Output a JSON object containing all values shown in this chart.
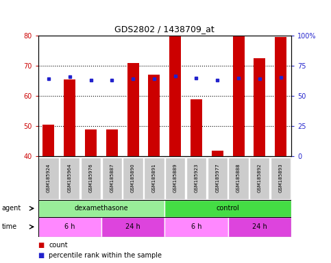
{
  "title": "GDS2802 / 1438709_at",
  "samples": [
    "GSM185924",
    "GSM185964",
    "GSM185976",
    "GSM185887",
    "GSM185890",
    "GSM185891",
    "GSM185889",
    "GSM185923",
    "GSM185977",
    "GSM185888",
    "GSM185892",
    "GSM185893"
  ],
  "bar_values": [
    50.5,
    65.5,
    49.0,
    49.0,
    71.0,
    67.0,
    80.0,
    59.0,
    42.0,
    80.0,
    72.5,
    79.5
  ],
  "dot_values": [
    64.0,
    66.0,
    63.0,
    63.0,
    64.5,
    64.5,
    66.5,
    65.0,
    63.0,
    65.0,
    64.5,
    65.5
  ],
  "ylim_left": [
    40,
    80
  ],
  "ylim_right": [
    0,
    100
  ],
  "yticks_left": [
    40,
    50,
    60,
    70,
    80
  ],
  "yticks_right": [
    0,
    25,
    50,
    75,
    100
  ],
  "ytick_labels_right": [
    "0",
    "25",
    "50",
    "75",
    "100%"
  ],
  "bar_color": "#cc0000",
  "dot_color": "#2222cc",
  "grid_color": "#000000",
  "agent_labels": [
    {
      "text": "dexamethasone",
      "start": 0,
      "end": 6,
      "color": "#99ee99"
    },
    {
      "text": "control",
      "start": 6,
      "end": 12,
      "color": "#44dd44"
    }
  ],
  "time_labels": [
    {
      "text": "6 h",
      "start": 0,
      "end": 3,
      "color": "#ff88ff"
    },
    {
      "text": "24 h",
      "start": 3,
      "end": 6,
      "color": "#dd44dd"
    },
    {
      "text": "6 h",
      "start": 6,
      "end": 9,
      "color": "#ff88ff"
    },
    {
      "text": "24 h",
      "start": 9,
      "end": 12,
      "color": "#dd44dd"
    }
  ],
  "tick_color_left": "#cc0000",
  "tick_color_right": "#2222cc",
  "bar_width": 0.55,
  "sample_bg": "#cccccc"
}
